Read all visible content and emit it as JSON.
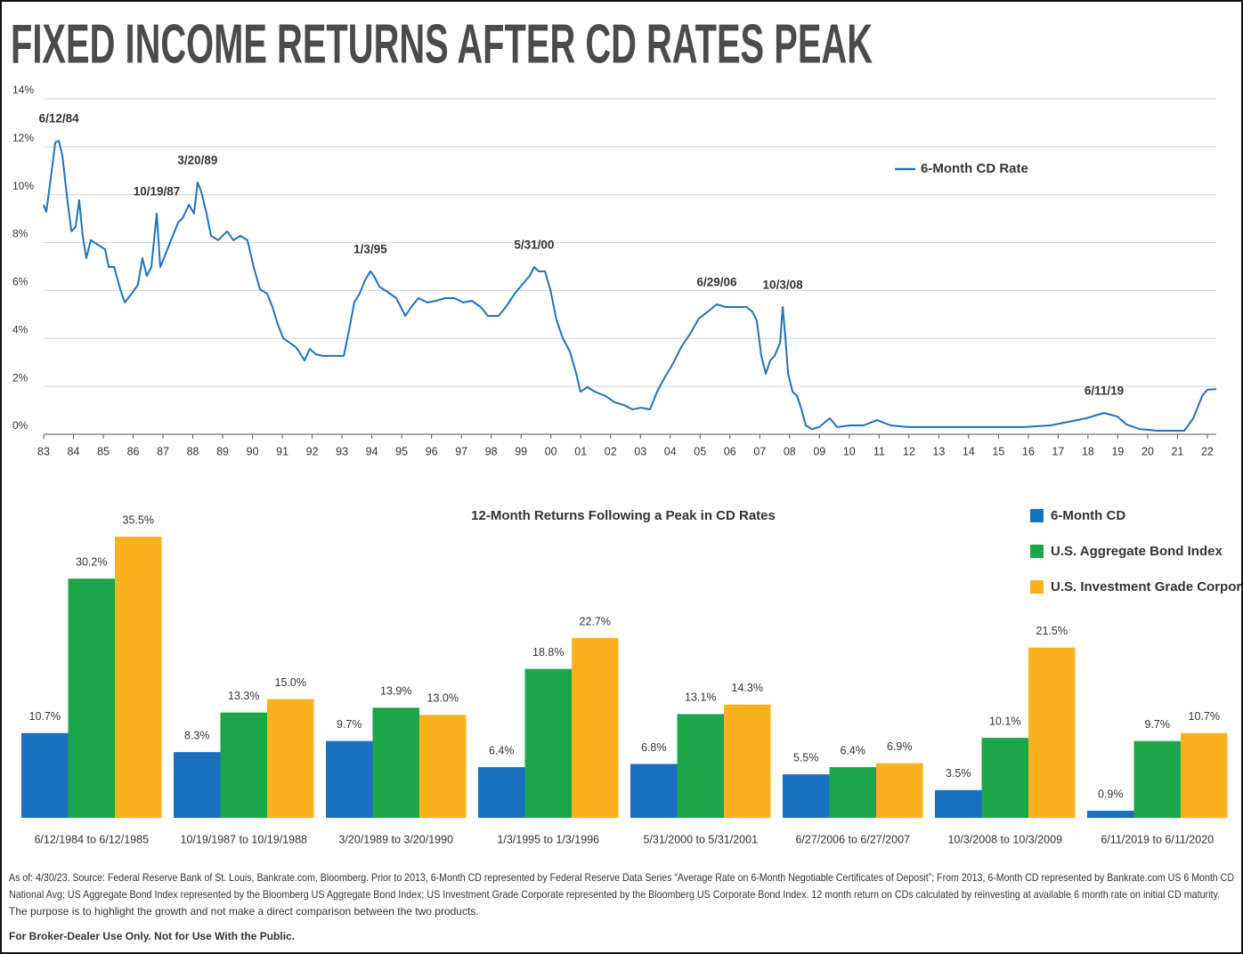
{
  "title": "FIXED INCOME RETURNS AFTER CD RATES PEAK",
  "chart_data": [
    {
      "type": "line",
      "x": [
        1983.0,
        1983.09,
        1983.24,
        1983.39,
        1983.51,
        1983.63,
        1983.78,
        1983.93,
        1984.07,
        1984.19,
        1984.31,
        1984.43,
        1984.58,
        1984.82,
        1985.06,
        1985.18,
        1985.36,
        1985.57,
        1985.72,
        1985.95,
        1986.16,
        1986.31,
        1986.46,
        1986.61,
        1986.79,
        1986.91,
        1987.09,
        1987.27,
        1987.51,
        1987.66,
        1987.87,
        1988.04,
        1988.16,
        1988.28,
        1988.46,
        1988.61,
        1988.85,
        1989.15,
        1989.36,
        1989.59,
        1989.83,
        1990.04,
        1990.25,
        1990.49,
        1990.67,
        1990.85,
        1991.03,
        1991.24,
        1991.45,
        1991.56,
        1991.74,
        1991.92,
        1992.13,
        1992.34,
        1992.58,
        1992.88,
        1993.06,
        1993.24,
        1993.41,
        1993.59,
        1993.77,
        1993.95,
        1994.07,
        1994.25,
        1994.52,
        1994.82,
        1995.12,
        1995.32,
        1995.56,
        1995.86,
        1996.16,
        1996.46,
        1996.76,
        1997.06,
        1997.35,
        1997.65,
        1997.89,
        1998.25,
        1998.49,
        1998.79,
        1999.08,
        1999.29,
        1999.44,
        1999.59,
        1999.8,
        1999.98,
        2000.19,
        2000.4,
        2000.64,
        2000.85,
        2000.99,
        2001.23,
        2001.47,
        2001.83,
        2002.13,
        2002.43,
        2002.73,
        2003.02,
        2003.32,
        2003.56,
        2003.8,
        2004.07,
        2004.37,
        2004.67,
        2004.96,
        2005.26,
        2005.56,
        2005.86,
        2006.16,
        2006.55,
        2006.75,
        2006.9,
        2007.05,
        2007.2,
        2007.35,
        2007.5,
        2007.68,
        2007.77,
        2007.86,
        2007.95,
        2008.1,
        2008.25,
        2008.4,
        2008.54,
        2008.75,
        2008.99,
        2009.35,
        2009.59,
        2010.04,
        2010.48,
        2010.93,
        2011.38,
        2011.98,
        2012.87,
        2014.36,
        2015.86,
        2016.75,
        2017.35,
        2017.94,
        2018.54,
        2018.99,
        2019.29,
        2019.73,
        2020.33,
        2021.23,
        2021.53,
        2021.83,
        2022.0,
        2022.3
      ],
      "series": [
        {
          "name": "6-Month CD Rate",
          "color": "#1f72bf",
          "values": [
            9.58,
            9.28,
            10.69,
            12.18,
            12.25,
            11.62,
            9.95,
            8.47,
            8.65,
            9.77,
            8.28,
            7.35,
            8.1,
            7.91,
            7.72,
            6.98,
            6.98,
            6.05,
            5.5,
            5.87,
            6.24,
            7.35,
            6.61,
            6.98,
            9.21,
            6.98,
            7.54,
            8.1,
            8.84,
            9.02,
            9.58,
            9.21,
            10.51,
            10.14,
            9.21,
            8.28,
            8.1,
            8.47,
            8.1,
            8.28,
            8.1,
            6.98,
            6.05,
            5.87,
            5.31,
            4.57,
            4.01,
            3.82,
            3.64,
            3.45,
            3.08,
            3.56,
            3.34,
            3.27,
            3.27,
            3.27,
            3.27,
            4.38,
            5.5,
            5.87,
            6.42,
            6.8,
            6.61,
            6.16,
            5.94,
            5.68,
            4.94,
            5.31,
            5.68,
            5.5,
            5.57,
            5.68,
            5.68,
            5.5,
            5.57,
            5.31,
            4.94,
            4.94,
            5.31,
            5.87,
            6.31,
            6.61,
            6.98,
            6.8,
            6.8,
            6.05,
            4.75,
            4.01,
            3.45,
            2.53,
            1.78,
            1.97,
            1.78,
            1.6,
            1.34,
            1.23,
            1.04,
            1.11,
            1.04,
            1.78,
            2.34,
            2.9,
            3.64,
            4.2,
            4.83,
            5.12,
            5.42,
            5.31,
            5.31,
            5.31,
            5.12,
            4.75,
            3.27,
            2.53,
            3.08,
            3.27,
            3.82,
            5.31,
            4.01,
            2.53,
            1.78,
            1.6,
            1.04,
            0.37,
            0.22,
            0.3,
            0.67,
            0.3,
            0.37,
            0.37,
            0.59,
            0.37,
            0.3,
            0.3,
            0.3,
            0.3,
            0.37,
            0.52,
            0.67,
            0.89,
            0.74,
            0.41,
            0.22,
            0.15,
            0.15,
            0.67,
            1.6,
            1.86,
            1.89
          ]
        }
      ],
      "xlim": [
        1983,
        2022.3
      ],
      "xticks": [
        {
          "value": 1983,
          "label": "83"
        },
        {
          "value": 1984,
          "label": "84"
        },
        {
          "value": 1985,
          "label": "85"
        },
        {
          "value": 1986,
          "label": "86"
        },
        {
          "value": 1987,
          "label": "87"
        },
        {
          "value": 1988,
          "label": "88"
        },
        {
          "value": 1989,
          "label": "89"
        },
        {
          "value": 1990,
          "label": "90"
        },
        {
          "value": 1991,
          "label": "91"
        },
        {
          "value": 1992,
          "label": "92"
        },
        {
          "value": 1993,
          "label": "93"
        },
        {
          "value": 1994,
          "label": "94"
        },
        {
          "value": 1995,
          "label": "95"
        },
        {
          "value": 1996,
          "label": "96"
        },
        {
          "value": 1997,
          "label": "97"
        },
        {
          "value": 1998,
          "label": "98"
        },
        {
          "value": 1999,
          "label": "99"
        },
        {
          "value": 2000,
          "label": "00"
        },
        {
          "value": 2001,
          "label": "01"
        },
        {
          "value": 2002,
          "label": "02"
        },
        {
          "value": 2003,
          "label": "03"
        },
        {
          "value": 2004,
          "label": "04"
        },
        {
          "value": 2005,
          "label": "05"
        },
        {
          "value": 2006,
          "label": "06"
        },
        {
          "value": 2007,
          "label": "07"
        },
        {
          "value": 2008,
          "label": "08"
        },
        {
          "value": 2009,
          "label": "09"
        },
        {
          "value": 2010,
          "label": "10"
        },
        {
          "value": 2011,
          "label": "11"
        },
        {
          "value": 2012,
          "label": "12"
        },
        {
          "value": 2013,
          "label": "13"
        },
        {
          "value": 2014,
          "label": "14"
        },
        {
          "value": 2015,
          "label": "15"
        },
        {
          "value": 2016,
          "label": "16"
        },
        {
          "value": 2017,
          "label": "17"
        },
        {
          "value": 2018,
          "label": "18"
        },
        {
          "value": 2019,
          "label": "19"
        },
        {
          "value": 2020,
          "label": "20"
        },
        {
          "value": 2021,
          "label": "21"
        },
        {
          "value": 2022,
          "label": "22"
        }
      ],
      "ylim": [
        0,
        14
      ],
      "yticks": [
        {
          "value": 0,
          "label": "0%"
        },
        {
          "value": 2,
          "label": "2%"
        },
        {
          "value": 4,
          "label": "4%"
        },
        {
          "value": 6,
          "label": "6%"
        },
        {
          "value": 8,
          "label": "8%"
        },
        {
          "value": 10,
          "label": "10%"
        },
        {
          "value": 12,
          "label": "12%"
        },
        {
          "value": 14,
          "label": "14%"
        }
      ],
      "grid": true,
      "legend": "upper right",
      "annotations": [
        {
          "text": "6/12/84",
          "x": 1983.51,
          "y": 12.25
        },
        {
          "text": "10/19/87",
          "x": 1986.79,
          "y": 9.21
        },
        {
          "text": "3/20/89",
          "x": 1988.16,
          "y": 10.51
        },
        {
          "text": "1/3/95",
          "x": 1993.95,
          "y": 6.8
        },
        {
          "text": "5/31/00",
          "x": 1999.44,
          "y": 6.98
        },
        {
          "text": "6/29/06",
          "x": 2005.56,
          "y": 5.42
        },
        {
          "text": "10/3/08",
          "x": 2007.77,
          "y": 5.31
        },
        {
          "text": "6/11/19",
          "x": 2018.54,
          "y": 0.89
        }
      ]
    },
    {
      "type": "bar",
      "title": "12-Month Returns Following a Peak in CD Rates",
      "categories": [
        "6/12/1984 to 6/12/1985",
        "10/19/1987 to 10/19/1988",
        "3/20/1989 to 3/20/1990",
        "1/3/1995 to 1/3/1996",
        "5/31/2000 to 5/31/2001",
        "6/27/2006 to 6/27/2007",
        "10/3/2008 to 10/3/2009",
        "6/11/2019 to 6/11/2020"
      ],
      "series": [
        {
          "name": "6-Month CD",
          "color": "#1a70c0",
          "values": [
            10.7,
            8.3,
            9.7,
            6.4,
            6.8,
            5.5,
            3.5,
            0.9
          ],
          "value_labels": [
            "10.7%",
            "8.3%",
            "9.7%",
            "6.4%",
            "6.8%",
            "5.5%",
            "3.5%",
            "0.9%"
          ]
        },
        {
          "name": "U.S. Aggregate Bond Index",
          "color": "#1ca64b",
          "values": [
            30.2,
            13.3,
            13.9,
            18.8,
            13.1,
            6.4,
            10.1,
            9.7
          ],
          "value_labels": [
            "30.2%",
            "13.3%",
            "13.9%",
            "18.8%",
            "13.1%",
            "6.4%",
            "10.1%",
            "9.7%"
          ]
        },
        {
          "name": "U.S. Investment Grade Corporate",
          "color": "#fbb11e",
          "values": [
            35.5,
            15.0,
            13.0,
            22.7,
            14.3,
            6.9,
            21.5,
            10.7
          ],
          "value_labels": [
            "35.5%",
            "15.0%",
            "13.0%",
            "22.7%",
            "14.3%",
            "6.9%",
            "21.5%",
            "10.7%"
          ]
        }
      ],
      "ylim": [
        0,
        40
      ],
      "legend": "upper right"
    }
  ],
  "footnote": {
    "lines": [
      "As of: 4/30/23. Source: Federal Reserve Bank of St. Louis, Bankrate.com, Bloomberg. Prior to 2013, 6-Month CD represented by Federal Reserve Data Series “Average Rate on 6-Month Negotiable Certificates of Deposit”; From 2013, 6-Month CD represented by Bankrate.com US 6 Month CD",
      "National Avg; US Aggregate Bond Index represented by the Bloomberg US Aggregate Bond Index; US Investment Grade Corporate represented by the Bloomberg US Corporate Bond Index. 12 month return on CDs calculated by reinvesting at available 6 month rate on initial CD maturity.",
      "The purpose is to highlight the growth and not make a direct comparison between the two products."
    ],
    "disclaimer": "For Broker-Dealer Use Only. Not for Use With the Public."
  }
}
